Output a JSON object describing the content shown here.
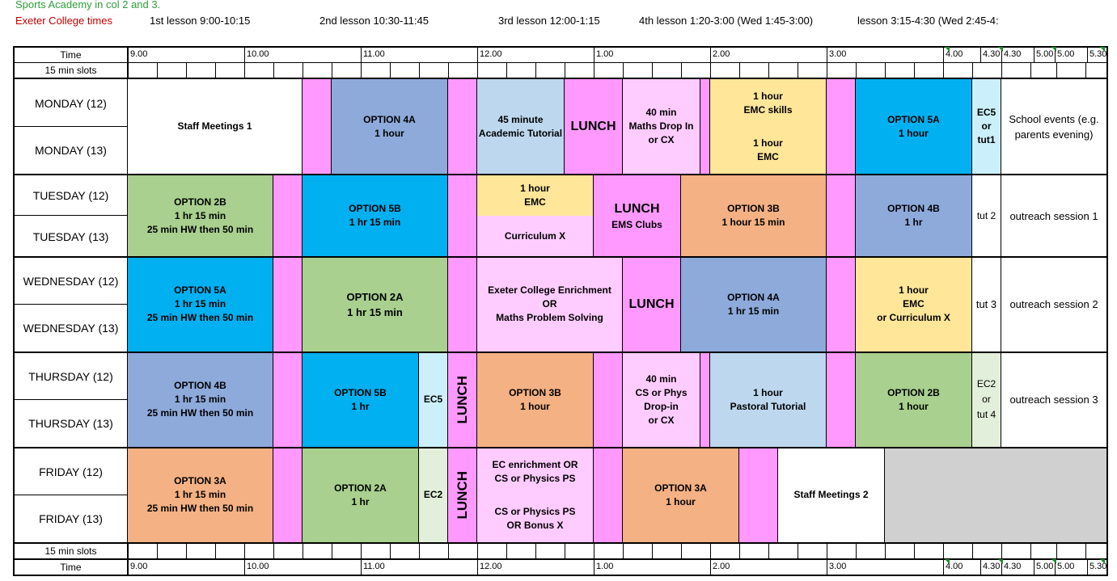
{
  "notes": {
    "sports": "Sports Academy in col 2 and 3.",
    "exeter": "Exeter College times",
    "sports_color": "#2e9d39",
    "exeter_color": "#c00000"
  },
  "lesson_times": [
    "1st lesson 9:00-10:15",
    "2nd lesson 10:30-11:45",
    "3rd lesson 12:00-1:15",
    "4th lesson 1:20-3:00 (Wed 1:45-3:00)",
    "lesson 3:15-4:30 (Wed 2:45-4:"
  ],
  "header": {
    "time_label": "Time",
    "slots_label": "15 min slots",
    "time_ticks": [
      "9.00",
      "10.00",
      "11.00",
      "12.00",
      "1.00",
      "2.00",
      "3.00",
      "4.00",
      "4.30",
      "4.30",
      "5.00",
      "5.00",
      "5.30"
    ]
  },
  "footer": {
    "time_label": "Time",
    "slots_label": "15 min slots",
    "time_ticks": [
      "9.00",
      "10.00",
      "11.00",
      "12.00",
      "1.00",
      "2.00",
      "3.00",
      "4.00",
      "4.30",
      "4.30",
      "5.00",
      "5.00",
      "5.30"
    ]
  },
  "days": [
    {
      "y12": "MONDAY (12)",
      "y13": "MONDAY (13)"
    },
    {
      "y12": "TUESDAY (12)",
      "y13": "TUESDAY (13)"
    },
    {
      "y12": "WEDNESDAY (12)",
      "y13": "WEDNESDAY (13)"
    },
    {
      "y12": "THURSDAY (12)",
      "y13": "THURSDAY (13)"
    },
    {
      "y12": "FRIDAY (12)",
      "y13": "FRIDAY (13)"
    }
  ],
  "colors": {
    "break_pink": "#ff99ff",
    "lunch_pink": "#ff99ff",
    "light_pink": "#ffccff",
    "option_blue": "#8eaadb",
    "option_cyan": "#00b0f0",
    "option_green": "#a9d08e",
    "option_orange": "#f4b183",
    "pale_blue": "#bdd7ee",
    "pale_yellow": "#ffe699",
    "pale_cyan": "#ccf0fb",
    "pale_green": "#e2efda",
    "grey": "#d0d0d0"
  },
  "blocks": {
    "monday": {
      "staff_meetings": "Staff Meetings 1",
      "option4a": [
        "OPTION 4A",
        "1 hour"
      ],
      "tutorial": [
        "45 minute",
        "Academic Tutorial"
      ],
      "lunch": "LUNCH",
      "maths_drop": [
        "40 min",
        "Maths Drop In",
        "or CX"
      ],
      "emc_skills": [
        "1 hour",
        "EMC skills"
      ],
      "emc": [
        "1 hour",
        "EMC"
      ],
      "option5a": [
        "OPTION 5A",
        "1 hour"
      ],
      "ec5": [
        "EC5",
        "or",
        "tut1"
      ],
      "events": [
        "School events (e.g.",
        "parents evening)"
      ]
    },
    "tuesday": {
      "option2b": [
        "OPTION 2B",
        "1 hr 15 min",
        "25 min HW then 50 min"
      ],
      "option5b": [
        "OPTION 5B",
        "1 hr 15 min"
      ],
      "emc": [
        "1 hour",
        "EMC"
      ],
      "curriculum": "Curriculum X",
      "lunch": "LUNCH",
      "ems": "EMS Clubs",
      "option3b": [
        "OPTION 3B",
        "1 hour 15 min"
      ],
      "option4b": [
        "OPTION 4B",
        "1 hr"
      ],
      "tut": "tut 2",
      "outreach": "outreach session 1"
    },
    "wednesday": {
      "option5a": [
        "OPTION 5A",
        "1 hr 15 min",
        "25 min HW then 50 min"
      ],
      "option2a": [
        "OPTION 2A",
        "1 hr 15 min"
      ],
      "enrich": [
        "Exeter College Enrichment",
        "OR",
        "Maths Problem Solving"
      ],
      "lunch": "LUNCH",
      "option4a": [
        "OPTION 4A",
        "1 hr 15 min"
      ],
      "emc": [
        "1 hour",
        "EMC",
        "or Curriculum X"
      ],
      "tut": "tut 3",
      "outreach": "outreach session 2"
    },
    "thursday": {
      "option4b": [
        "OPTION 4B",
        "1 hr 15 min",
        "25 min HW then 50 min"
      ],
      "option5b": [
        "OPTION 5B",
        "1 hr"
      ],
      "ec5": "EC5",
      "lunch": "LUNCH",
      "option3b": [
        "OPTION 3B",
        "1 hour"
      ],
      "drop": [
        "40 min",
        "CS or Phys",
        "Drop-in",
        "or CX"
      ],
      "pastoral": [
        "1 hour",
        "Pastoral Tutorial"
      ],
      "option2b": [
        "OPTION 2B",
        "1 hour"
      ],
      "ec2": [
        "EC2",
        "or",
        "tut 4"
      ],
      "outreach": "outreach session 3"
    },
    "friday": {
      "option3a": [
        "OPTION 3A",
        "1 hr 15 min",
        "25 min HW then 50 min"
      ],
      "option2a": [
        "OPTION 2A",
        "1 hr"
      ],
      "ec2": "EC2",
      "lunch": "LUNCH",
      "ec_enrich": [
        "EC enrichment OR",
        "CS or Physics PS"
      ],
      "cs_bonus": [
        "CS or Physics PS",
        "OR Bonus X"
      ],
      "option3a_b": [
        "OPTION 3A",
        "1 hour"
      ],
      "staff": "Staff Meetings 2"
    }
  }
}
